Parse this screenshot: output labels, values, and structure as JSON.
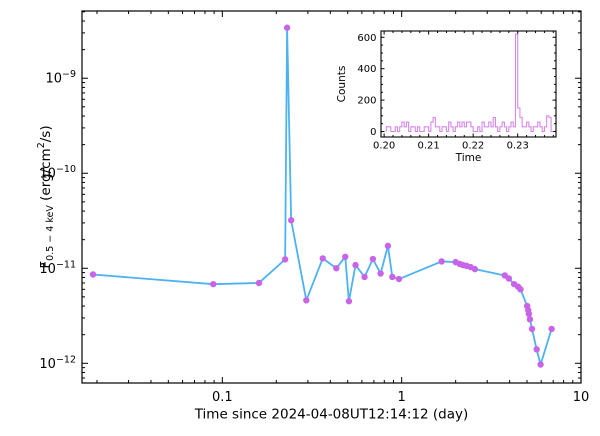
{
  "colors": {
    "background": "#ffffff",
    "axis": "#000000",
    "main_line": "#4db2f2",
    "main_marker": "#c864e8",
    "inset_line": "#d688ec"
  },
  "chart_data": [
    {
      "id": "light_curve",
      "type": "line",
      "xscale": "log",
      "yscale": "log",
      "grid": false,
      "xlabel": "Time since 2024-04-08UT12:14:12 (day)",
      "ylabel": {
        "prefix": "F",
        "subscript": "0.5 − 4 keV",
        "mid": " (erg/cm",
        "superscript": "2",
        "suffix": "/s)"
      },
      "xlim": [
        0.0165,
        10.0
      ],
      "ylim": [
        6.2e-13,
        5.1e-09
      ],
      "xticks": [
        {
          "value": 0.1,
          "label": "0.1"
        },
        {
          "value": 1,
          "label": "1"
        },
        {
          "value": 10,
          "label": "10"
        }
      ],
      "yticks": [
        {
          "value": 1e-09,
          "mantissa": "10",
          "exponent": "−9"
        },
        {
          "value": 1e-10,
          "mantissa": "10",
          "exponent": "−10"
        },
        {
          "value": 1e-11,
          "mantissa": "10",
          "exponent": "−11"
        },
        {
          "value": 1e-12,
          "mantissa": "10",
          "exponent": "−12"
        }
      ],
      "points": [
        [
          0.019,
          8.6e-12
        ],
        [
          0.089,
          6.8e-12
        ],
        [
          0.16,
          7e-12
        ],
        [
          0.224,
          1.24e-11
        ],
        [
          0.2297,
          3.4e-09
        ],
        [
          0.242,
          3.2e-11
        ],
        [
          0.294,
          4.6e-12
        ],
        [
          0.363,
          1.27e-11
        ],
        [
          0.432,
          1e-11
        ],
        [
          0.4845,
          1.32e-11
        ],
        [
          0.508,
          4.5e-12
        ],
        [
          0.553,
          1.08e-11
        ],
        [
          0.621,
          8.1e-12
        ],
        [
          0.691,
          1.25e-11
        ],
        [
          0.763,
          8.8e-12
        ],
        [
          0.838,
          1.72e-11
        ],
        [
          0.887,
          8.1e-12
        ],
        [
          0.966,
          7.7e-12
        ],
        [
          1.67,
          1.18e-11
        ],
        [
          2.0,
          1.16e-11
        ],
        [
          2.11,
          1.11e-11
        ],
        [
          2.2,
          1.08e-11
        ],
        [
          2.3,
          1.06e-11
        ],
        [
          2.42,
          1.03e-11
        ],
        [
          2.56,
          9.8e-12
        ],
        [
          3.76,
          8.4e-12
        ],
        [
          3.96,
          7.8e-12
        ],
        [
          4.24,
          6.8e-12
        ],
        [
          4.46,
          6.4e-12
        ],
        [
          4.6,
          6e-12
        ],
        [
          5.01,
          4e-12
        ],
        [
          5.08,
          3.6e-12
        ],
        [
          5.12,
          3.3e-12
        ],
        [
          5.19,
          2.9e-12
        ],
        [
          5.33,
          2.3e-12
        ],
        [
          5.66,
          1.4e-12
        ],
        [
          5.95,
          9.7e-13
        ],
        [
          6.86,
          2.3e-12
        ]
      ]
    },
    {
      "id": "burst_inset",
      "type": "step",
      "xscale": "linear",
      "yscale": "linear",
      "grid": false,
      "xlabel": "Time",
      "ylabel": "Counts",
      "xlim": [
        0.1993,
        0.2386
      ],
      "ylim": [
        -35,
        640
      ],
      "xticks": [
        {
          "value": 0.2,
          "label": "0.20"
        },
        {
          "value": 0.21,
          "label": "0.21"
        },
        {
          "value": 0.22,
          "label": "0.22"
        },
        {
          "value": 0.23,
          "label": "0.23"
        }
      ],
      "yticks": [
        {
          "value": 0,
          "label": "0"
        },
        {
          "value": 200,
          "label": "200"
        },
        {
          "value": 400,
          "label": "400"
        },
        {
          "value": 600,
          "label": "600"
        }
      ],
      "x_minor_step": 0.002,
      "y_minor_step": 50,
      "bin_start": 0.2005,
      "bin_width": 0.0005,
      "counts": [
        30,
        30,
        0,
        0,
        30,
        0,
        30,
        60,
        30,
        60,
        0,
        30,
        30,
        0,
        30,
        0,
        0,
        30,
        30,
        0,
        60,
        90,
        30,
        30,
        0,
        30,
        30,
        0,
        60,
        30,
        0,
        30,
        60,
        30,
        60,
        30,
        60,
        60,
        30,
        0,
        0,
        30,
        0,
        60,
        30,
        30,
        60,
        30,
        90,
        30,
        0,
        31,
        60,
        30,
        0,
        30,
        60,
        30,
        620,
        150,
        90,
        30,
        30,
        60,
        30,
        0,
        30,
        30,
        60,
        30,
        0,
        30,
        100,
        90,
        0
      ]
    }
  ]
}
